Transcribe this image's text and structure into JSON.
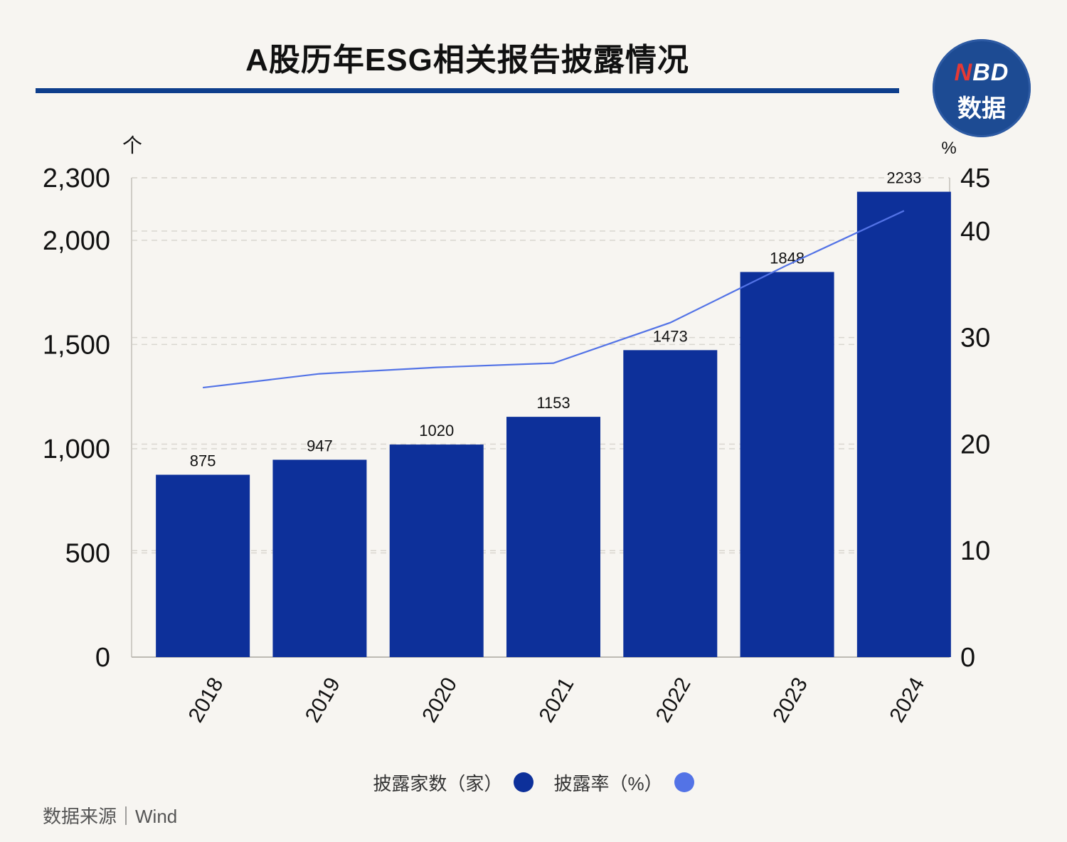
{
  "title": "A股历年ESG相关报告披露情况",
  "logo": {
    "brand_red": "N",
    "brand_rest": "BD",
    "sub": "数据"
  },
  "source": "数据来源｜Wind",
  "legend": [
    {
      "label": "披露家数（家）",
      "color": "#0d309a"
    },
    {
      "label": "披露率（%）",
      "color": "#5373e6"
    }
  ],
  "chart_data": {
    "type": "bar",
    "categories": [
      "2018",
      "2019",
      "2020",
      "2021",
      "2022",
      "2023",
      "2024"
    ],
    "series": [
      {
        "name": "披露家数（家）",
        "type": "bar",
        "axis": "left",
        "color": "#0d309a",
        "values": [
          875,
          947,
          1020,
          1153,
          1473,
          1848,
          2233
        ]
      },
      {
        "name": "披露率（%）",
        "type": "line",
        "axis": "right",
        "color": "#5373e6",
        "values": [
          25.3,
          26.6,
          27.2,
          27.6,
          31.4,
          36.8,
          41.9
        ]
      }
    ],
    "y_left": {
      "unit": "个",
      "ticks": [
        0,
        500,
        1000,
        1500,
        2000,
        2300
      ],
      "tick_labels": [
        "0",
        "500",
        "1,000",
        "1,500",
        "2,000",
        "2,300"
      ],
      "ylim": [
        0,
        2300
      ]
    },
    "y_right": {
      "unit": "%",
      "ticks": [
        0,
        10,
        20,
        30,
        40,
        45
      ],
      "ylim": [
        0,
        45
      ]
    },
    "grid": true,
    "legend_position": "bottom"
  }
}
